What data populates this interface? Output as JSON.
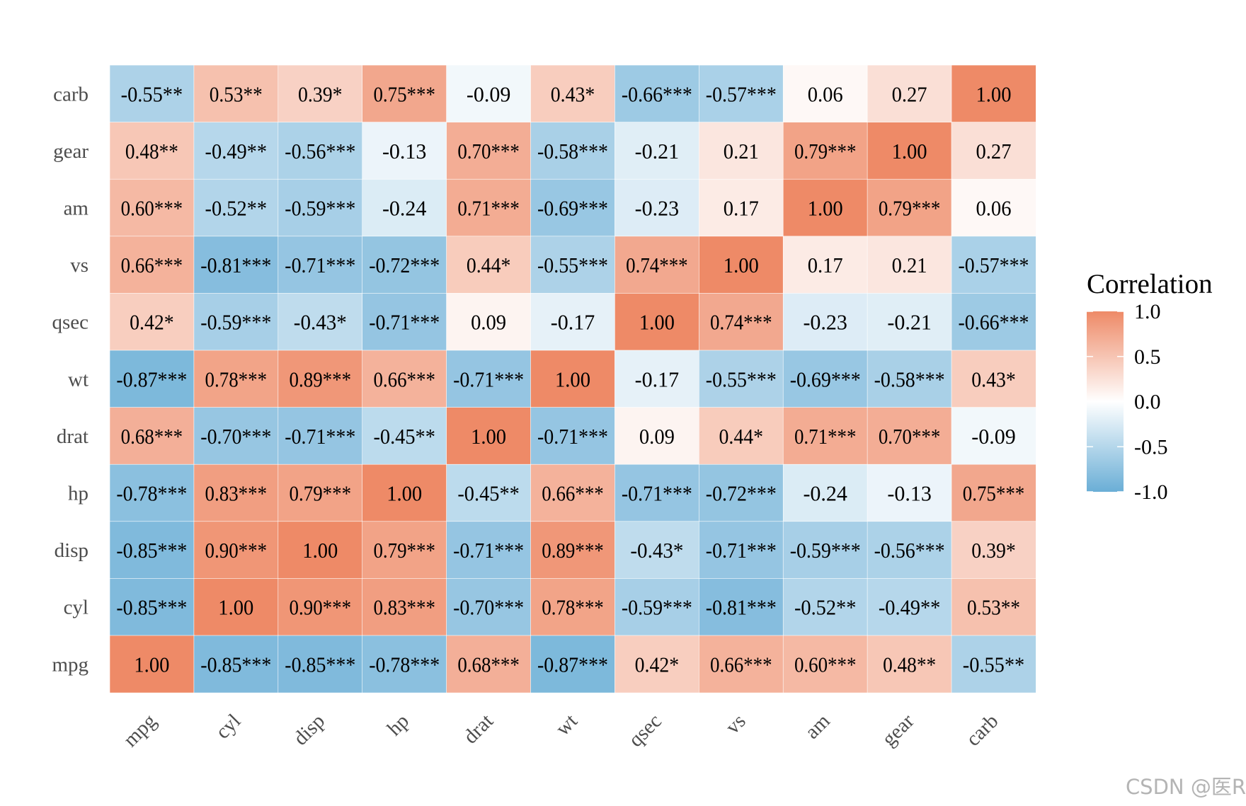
{
  "chart_data": {
    "type": "heatmap",
    "title": "",
    "xlabel": "",
    "ylabel": "",
    "variables": [
      "mpg",
      "cyl",
      "disp",
      "hp",
      "drat",
      "wt",
      "qsec",
      "vs",
      "am",
      "gear",
      "carb"
    ],
    "x_tick_labels": [
      "mpg",
      "cyl",
      "disp",
      "hp",
      "drat",
      "wt",
      "qsec",
      "vs",
      "am",
      "gear",
      "carb"
    ],
    "y_tick_labels_top_to_bottom": [
      "carb",
      "gear",
      "am",
      "vs",
      "qsec",
      "wt",
      "drat",
      "hp",
      "disp",
      "cyl",
      "mpg"
    ],
    "values": [
      [
        1.0,
        -0.85,
        -0.85,
        -0.78,
        0.68,
        -0.87,
        0.42,
        0.66,
        0.6,
        0.48,
        -0.55
      ],
      [
        -0.85,
        1.0,
        0.9,
        0.83,
        -0.7,
        0.78,
        -0.59,
        -0.81,
        -0.52,
        -0.49,
        0.53
      ],
      [
        -0.85,
        0.9,
        1.0,
        0.79,
        -0.71,
        0.89,
        -0.43,
        -0.71,
        -0.59,
        -0.56,
        0.39
      ],
      [
        -0.78,
        0.83,
        0.79,
        1.0,
        -0.45,
        0.66,
        -0.71,
        -0.72,
        -0.24,
        -0.13,
        0.75
      ],
      [
        0.68,
        -0.7,
        -0.71,
        -0.45,
        1.0,
        -0.71,
        0.09,
        0.44,
        0.71,
        0.7,
        -0.09
      ],
      [
        -0.87,
        0.78,
        0.89,
        0.66,
        -0.71,
        1.0,
        -0.17,
        -0.55,
        -0.69,
        -0.58,
        0.43
      ],
      [
        0.42,
        -0.59,
        -0.43,
        -0.71,
        0.09,
        -0.17,
        1.0,
        0.74,
        -0.23,
        -0.21,
        -0.66
      ],
      [
        0.66,
        -0.81,
        -0.71,
        -0.72,
        0.44,
        -0.55,
        0.74,
        1.0,
        0.17,
        0.21,
        -0.57
      ],
      [
        0.6,
        -0.52,
        -0.59,
        -0.24,
        0.71,
        -0.69,
        -0.23,
        0.17,
        1.0,
        0.79,
        0.06
      ],
      [
        0.48,
        -0.49,
        -0.56,
        -0.13,
        0.7,
        -0.58,
        -0.21,
        0.21,
        0.79,
        1.0,
        0.27
      ],
      [
        -0.55,
        0.53,
        0.39,
        0.75,
        -0.09,
        0.43,
        -0.66,
        -0.57,
        0.06,
        0.27,
        1.0
      ]
    ],
    "labels": [
      [
        "1.00",
        "-0.85***",
        "-0.85***",
        "-0.78***",
        "0.68***",
        "-0.87***",
        "0.42*",
        "0.66***",
        "0.60***",
        "0.48**",
        "-0.55**"
      ],
      [
        "-0.85***",
        "1.00",
        "0.90***",
        "0.83***",
        "-0.70***",
        "0.78***",
        "-0.59***",
        "-0.81***",
        "-0.52**",
        "-0.49**",
        "0.53**"
      ],
      [
        "-0.85***",
        "0.90***",
        "1.00",
        "0.79***",
        "-0.71***",
        "0.89***",
        "-0.43*",
        "-0.71***",
        "-0.59***",
        "-0.56***",
        "0.39*"
      ],
      [
        "-0.78***",
        "0.83***",
        "0.79***",
        "1.00",
        "-0.45**",
        "0.66***",
        "-0.71***",
        "-0.72***",
        "-0.24",
        "-0.13",
        "0.75***"
      ],
      [
        "0.68***",
        "-0.70***",
        "-0.71***",
        "-0.45**",
        "1.00",
        "-0.71***",
        "0.09",
        "0.44*",
        "0.71***",
        "0.70***",
        "-0.09"
      ],
      [
        "-0.87***",
        "0.78***",
        "0.89***",
        "0.66***",
        "-0.71***",
        "1.00",
        "-0.17",
        "-0.55***",
        "-0.69***",
        "-0.58***",
        "0.43*"
      ],
      [
        "0.42*",
        "-0.59***",
        "-0.43*",
        "-0.71***",
        "0.09",
        "-0.17",
        "1.00",
        "0.74***",
        "-0.23",
        "-0.21",
        "-0.66***"
      ],
      [
        "0.66***",
        "-0.81***",
        "-0.71***",
        "-0.72***",
        "0.44*",
        "-0.55***",
        "0.74***",
        "1.00",
        "0.17",
        "0.21",
        "-0.57***"
      ],
      [
        "0.60***",
        "-0.52**",
        "-0.59***",
        "-0.24",
        "0.71***",
        "-0.69***",
        "-0.23",
        "0.17",
        "1.00",
        "0.79***",
        "0.06"
      ],
      [
        "0.48**",
        "-0.49**",
        "-0.56***",
        "-0.13",
        "0.70***",
        "-0.58***",
        "-0.21",
        "0.21",
        "0.79***",
        "1.00",
        "0.27"
      ],
      [
        "-0.55**",
        "0.53**",
        "0.39*",
        "0.75***",
        "-0.09",
        "0.43*",
        "-0.66***",
        "-0.57***",
        "0.06",
        "0.27",
        "1.00"
      ]
    ],
    "legend": {
      "title": "Correlation",
      "placement": "right",
      "ticks": [
        1.0,
        0.5,
        0.0,
        -0.5,
        -1.0
      ],
      "tick_labels": [
        "1.0",
        "0.5",
        "0.0",
        "-0.5",
        "-1.0"
      ],
      "range": [
        -1.0,
        1.0
      ]
    },
    "colors": {
      "low": "#6aaed6",
      "mid": "#ffffff",
      "high": "#ee8a67"
    }
  },
  "watermark": "CSDN @医R"
}
